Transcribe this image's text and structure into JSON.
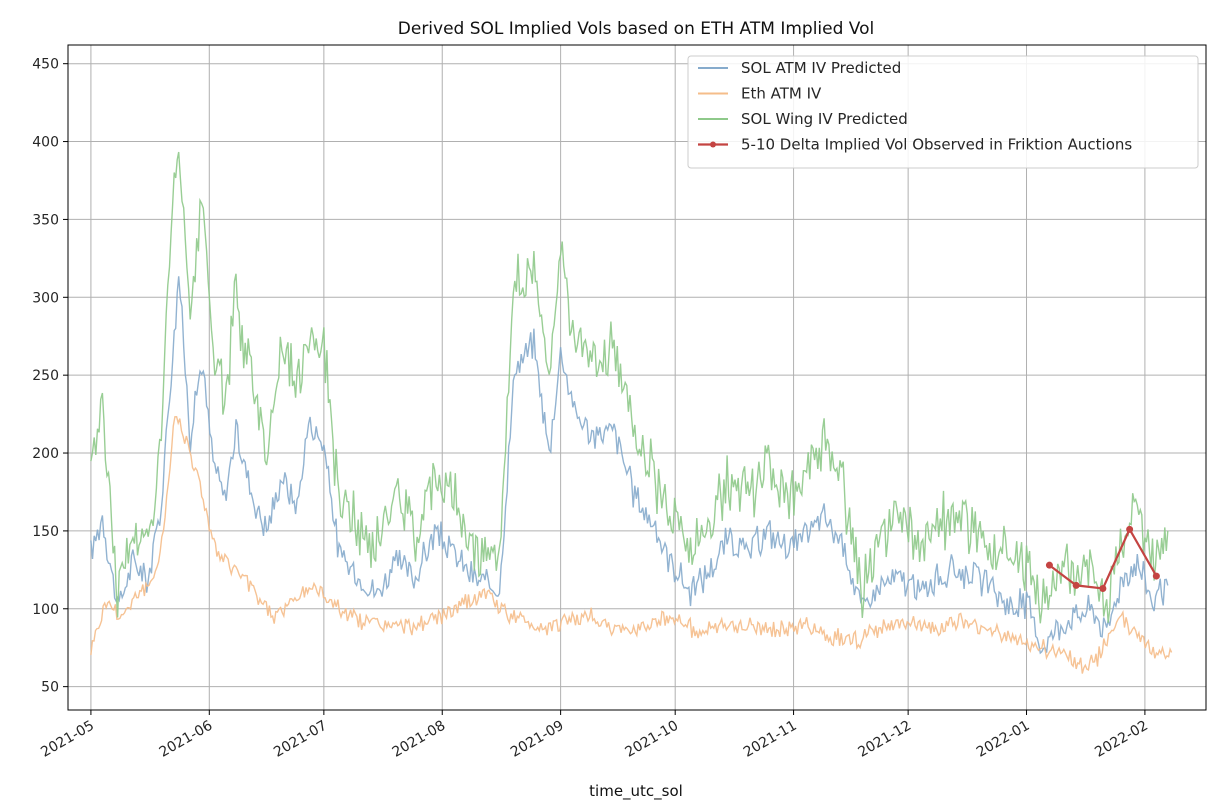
{
  "chart_data": {
    "type": "line",
    "title": "Derived SOL Implied Vols based on ETH ATM Implied Vol",
    "xlabel": "time_utc_sol",
    "ylabel": "",
    "xlim": [
      "2021-04-25",
      "2022-02-17"
    ],
    "ylim": [
      35,
      462
    ],
    "grid": true,
    "legend_position": "top-right",
    "x_ticks": [
      "2021-05",
      "2021-06",
      "2021-07",
      "2021-08",
      "2021-09",
      "2021-10",
      "2021-11",
      "2021-12",
      "2022-01",
      "2022-02"
    ],
    "y_ticks": [
      50,
      100,
      150,
      200,
      250,
      300,
      350,
      400,
      450
    ],
    "series": [
      {
        "name": "SOL ATM IV Predicted",
        "color": "#86abcc",
        "style": "line",
        "x": [
          "2021-05-01",
          "2021-05-04",
          "2021-05-08",
          "2021-05-12",
          "2021-05-16",
          "2021-05-19",
          "2021-05-22",
          "2021-05-24",
          "2021-05-27",
          "2021-05-30",
          "2021-06-02",
          "2021-06-05",
          "2021-06-08",
          "2021-06-12",
          "2021-06-16",
          "2021-06-20",
          "2021-06-24",
          "2021-06-27",
          "2021-07-01",
          "2021-07-05",
          "2021-07-10",
          "2021-07-15",
          "2021-07-20",
          "2021-07-25",
          "2021-07-30",
          "2021-08-04",
          "2021-08-09",
          "2021-08-13",
          "2021-08-16",
          "2021-08-20",
          "2021-08-25",
          "2021-08-29",
          "2021-09-01",
          "2021-09-05",
          "2021-09-10",
          "2021-09-15",
          "2021-09-20",
          "2021-09-25",
          "2021-09-30",
          "2021-10-05",
          "2021-10-10",
          "2021-10-15",
          "2021-10-20",
          "2021-10-25",
          "2021-10-30",
          "2021-11-04",
          "2021-11-09",
          "2021-11-14",
          "2021-11-19",
          "2021-11-24",
          "2021-11-29",
          "2021-12-04",
          "2021-12-09",
          "2021-12-14",
          "2021-12-19",
          "2021-12-24",
          "2021-12-29",
          "2022-01-01",
          "2022-01-05",
          "2022-01-10",
          "2022-01-14",
          "2022-01-18",
          "2022-01-22",
          "2022-01-26",
          "2022-01-30",
          "2022-02-03",
          "2022-02-07"
        ],
        "values": [
          135,
          160,
          100,
          130,
          120,
          160,
          250,
          315,
          210,
          260,
          195,
          170,
          215,
          175,
          150,
          185,
          165,
          220,
          205,
          135,
          120,
          110,
          130,
          120,
          150,
          135,
          120,
          115,
          112,
          255,
          270,
          200,
          265,
          225,
          210,
          215,
          175,
          155,
          130,
          110,
          125,
          145,
          135,
          150,
          140,
          145,
          160,
          140,
          100,
          115,
          120,
          110,
          120,
          125,
          120,
          110,
          100,
          105,
          75,
          90,
          95,
          100,
          85,
          120,
          130,
          105,
          115
        ]
      },
      {
        "name": "Eth ATM IV",
        "color": "#f5bd8a",
        "style": "line",
        "x": [
          "2021-05-01",
          "2021-05-05",
          "2021-05-09",
          "2021-05-13",
          "2021-05-17",
          "2021-05-20",
          "2021-05-23",
          "2021-05-26",
          "2021-05-30",
          "2021-06-03",
          "2021-06-08",
          "2021-06-13",
          "2021-06-18",
          "2021-06-23",
          "2021-06-28",
          "2021-07-03",
          "2021-07-08",
          "2021-07-15",
          "2021-07-22",
          "2021-07-29",
          "2021-08-05",
          "2021-08-12",
          "2021-08-19",
          "2021-08-26",
          "2021-09-02",
          "2021-09-09",
          "2021-09-16",
          "2021-09-23",
          "2021-09-30",
          "2021-10-07",
          "2021-10-14",
          "2021-10-21",
          "2021-10-28",
          "2021-11-04",
          "2021-11-11",
          "2021-11-18",
          "2021-11-25",
          "2021-12-02",
          "2021-12-09",
          "2021-12-16",
          "2021-12-23",
          "2021-12-30",
          "2022-01-05",
          "2022-01-12",
          "2022-01-16",
          "2022-01-20",
          "2022-01-25",
          "2022-01-30",
          "2022-02-04",
          "2022-02-08"
        ],
        "values": [
          75,
          105,
          95,
          110,
          115,
          150,
          225,
          210,
          175,
          135,
          125,
          110,
          95,
          105,
          115,
          105,
          95,
          90,
          88,
          92,
          100,
          110,
          95,
          88,
          92,
          95,
          85,
          90,
          95,
          85,
          88,
          90,
          85,
          90,
          82,
          80,
          88,
          90,
          88,
          92,
          85,
          80,
          75,
          70,
          62,
          70,
          95,
          85,
          70,
          72
        ]
      },
      {
        "name": "SOL Wing IV Predicted",
        "color": "#8ec98a",
        "style": "line",
        "x": [
          "2021-05-01",
          "2021-05-04",
          "2021-05-08",
          "2021-05-12",
          "2021-05-16",
          "2021-05-19",
          "2021-05-22",
          "2021-05-24",
          "2021-05-27",
          "2021-05-30",
          "2021-06-02",
          "2021-06-05",
          "2021-06-08",
          "2021-06-12",
          "2021-06-16",
          "2021-06-20",
          "2021-06-24",
          "2021-06-27",
          "2021-07-01",
          "2021-07-05",
          "2021-07-10",
          "2021-07-15",
          "2021-07-20",
          "2021-07-25",
          "2021-07-30",
          "2021-08-04",
          "2021-08-09",
          "2021-08-13",
          "2021-08-16",
          "2021-08-20",
          "2021-08-25",
          "2021-08-29",
          "2021-09-01",
          "2021-09-05",
          "2021-09-10",
          "2021-09-15",
          "2021-09-20",
          "2021-09-25",
          "2021-09-30",
          "2021-10-05",
          "2021-10-10",
          "2021-10-15",
          "2021-10-20",
          "2021-10-25",
          "2021-10-30",
          "2021-11-04",
          "2021-11-09",
          "2021-11-14",
          "2021-11-19",
          "2021-11-24",
          "2021-11-29",
          "2021-12-04",
          "2021-12-09",
          "2021-12-14",
          "2021-12-19",
          "2021-12-24",
          "2021-12-29",
          "2022-01-01",
          "2022-01-05",
          "2022-01-10",
          "2022-01-14",
          "2022-01-18",
          "2022-01-22",
          "2022-01-26",
          "2022-01-30",
          "2022-02-03",
          "2022-02-07"
        ],
        "values": [
          200,
          230,
          110,
          150,
          140,
          200,
          340,
          400,
          280,
          360,
          270,
          230,
          300,
          250,
          200,
          270,
          240,
          280,
          270,
          170,
          150,
          140,
          175,
          150,
          190,
          170,
          140,
          140,
          130,
          310,
          320,
          250,
          330,
          270,
          260,
          265,
          220,
          190,
          160,
          140,
          155,
          185,
          170,
          190,
          175,
          185,
          205,
          175,
          110,
          150,
          155,
          140,
          155,
          155,
          150,
          140,
          125,
          130,
          100,
          125,
          125,
          130,
          100,
          150,
          160,
          130,
          150
        ]
      },
      {
        "name": " 5-10 Delta Implied Vol Observed in Friktion Auctions",
        "color": "#c44442",
        "style": "line-marker",
        "x": [
          "2022-01-07",
          "2022-01-14",
          "2022-01-21",
          "2022-01-28",
          "2022-02-04"
        ],
        "values": [
          128,
          115,
          113,
          151,
          121
        ]
      }
    ]
  }
}
